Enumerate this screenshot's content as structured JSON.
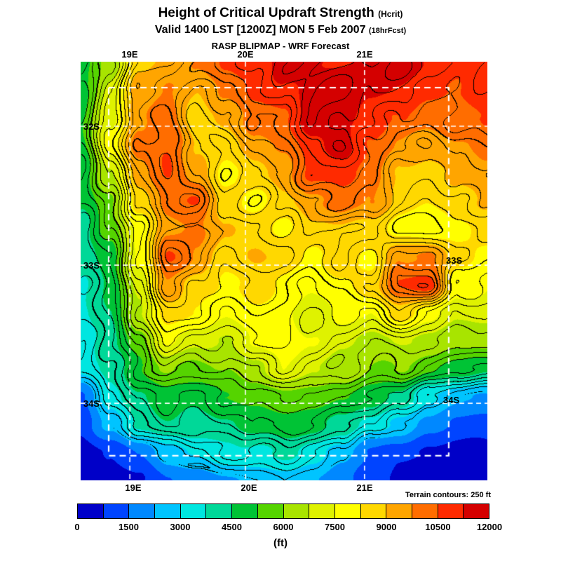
{
  "title": {
    "line1": "Height of Critical Updraft Strength",
    "line1_suffix": "(Hcrit)",
    "line2": "Valid 1400 LST [1200Z] MON 5 Feb 2007",
    "line2_suffix": "(18hrFcst)",
    "line3": "RASP BLIPMAP - WRF Forecast"
  },
  "axes": {
    "top": [
      "19E",
      "20E",
      "21E"
    ],
    "bottom": [
      "19E",
      "20E",
      "21E"
    ],
    "left": [
      "32S",
      "33S",
      "34S"
    ],
    "right": [
      "33S",
      "34S"
    ]
  },
  "map_note": "Terrain contours: 250 ft",
  "colorbar": {
    "labels": [
      "0",
      "1500",
      "3000",
      "4500",
      "6000",
      "7500",
      "9000",
      "10500",
      "12000"
    ],
    "unit": "(ft)",
    "colors": [
      "#0000c8",
      "#0044ff",
      "#0088ff",
      "#00c4ff",
      "#00e6e0",
      "#00d898",
      "#00c335",
      "#55d400",
      "#a8e400",
      "#dff200",
      "#ffff00",
      "#ffd800",
      "#ffa500",
      "#ff6d00",
      "#ff2a00",
      "#d40000"
    ]
  },
  "chart_data": {
    "type": "heatmap",
    "title": "Height of Critical Updraft Strength (Hcrit)",
    "units": "ft",
    "x_tick_labels": [
      "19E",
      "20E",
      "21E"
    ],
    "y_tick_labels": [
      "32S",
      "33S",
      "34S"
    ],
    "colorbar_ticks": [
      0,
      1500,
      3000,
      4500,
      6000,
      7500,
      9000,
      10500,
      12000
    ],
    "value_range": [
      0,
      12000
    ],
    "level_step": 750,
    "contour_interval_note": "Terrain contours: 250 ft",
    "grid_orientation": "rows north to south, cols west to east",
    "grid": [
      [
        4800,
        6200,
        8600,
        9200,
        9600,
        10600,
        11000,
        11600,
        11400,
        11200,
        11600,
        11800,
        11300,
        10800,
        11000
      ],
      [
        5000,
        6800,
        9200,
        9800,
        9000,
        10000,
        10800,
        11200,
        11600,
        11800,
        11500,
        11200,
        10800,
        10500,
        10800
      ],
      [
        5200,
        7200,
        9600,
        10200,
        8600,
        9200,
        10000,
        10600,
        11800,
        11500,
        11000,
        10600,
        10000,
        10200,
        10600
      ],
      [
        5000,
        7600,
        10000,
        10600,
        9000,
        8600,
        9600,
        10000,
        11000,
        11600,
        10600,
        9600,
        9200,
        9600,
        10000
      ],
      [
        4800,
        6600,
        9600,
        10600,
        9600,
        8000,
        8600,
        9600,
        10600,
        11000,
        10000,
        9000,
        8600,
        9000,
        9600
      ],
      [
        4500,
        6000,
        8600,
        10000,
        10600,
        8600,
        8000,
        8600,
        9600,
        10000,
        9600,
        8600,
        8200,
        8600,
        9000
      ],
      [
        4200,
        5600,
        8000,
        9600,
        10000,
        9000,
        8600,
        8000,
        8600,
        9000,
        8600,
        8000,
        7600,
        8000,
        8600
      ],
      [
        4000,
        5000,
        7600,
        10600,
        9600,
        8600,
        9000,
        8600,
        8000,
        8600,
        8000,
        9600,
        10000,
        8600,
        8000
      ],
      [
        3800,
        4800,
        7000,
        9600,
        8600,
        8000,
        8600,
        8000,
        7600,
        8000,
        8600,
        10600,
        10800,
        8000,
        7600
      ],
      [
        3600,
        4500,
        6500,
        8600,
        8000,
        7600,
        8000,
        7600,
        7000,
        7600,
        7600,
        8600,
        8000,
        7000,
        7000
      ],
      [
        3500,
        4200,
        5600,
        7600,
        7000,
        6600,
        7600,
        8000,
        7600,
        7000,
        6600,
        7000,
        6600,
        6200,
        6400
      ],
      [
        3200,
        4000,
        5000,
        6000,
        5600,
        6000,
        6600,
        7600,
        7000,
        6600,
        6000,
        6000,
        5400,
        5000,
        4600
      ],
      [
        1400,
        3400,
        4400,
        5000,
        4800,
        5200,
        5600,
        6000,
        5800,
        5400,
        5000,
        4400,
        3000,
        2400,
        2200
      ],
      [
        800,
        2400,
        4000,
        4400,
        4200,
        4400,
        4800,
        5000,
        4800,
        4400,
        3400,
        2800,
        1800,
        1200,
        1000
      ],
      [
        300,
        900,
        1600,
        2800,
        3200,
        3600,
        3800,
        4000,
        3500,
        2600,
        1400,
        900,
        500,
        400,
        500
      ],
      [
        200,
        400,
        800,
        1500,
        2000,
        2200,
        2400,
        2600,
        2200,
        1800,
        900,
        500,
        300,
        300,
        400
      ]
    ]
  }
}
